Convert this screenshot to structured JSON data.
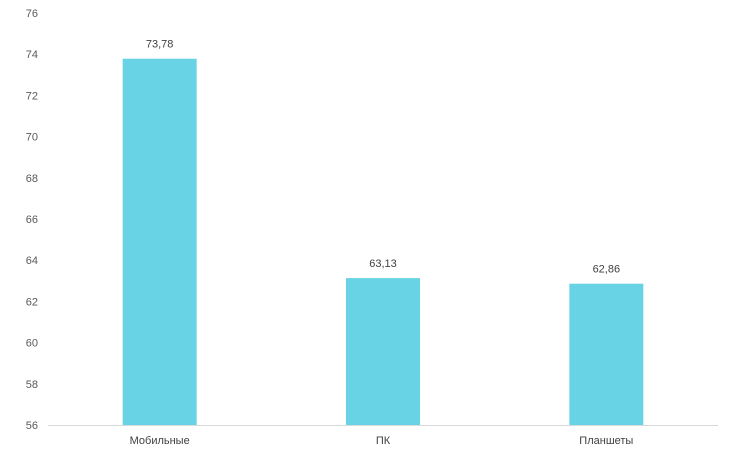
{
  "chart_data": {
    "type": "bar",
    "categories": [
      "Мобильные",
      "ПК",
      "Планшеты"
    ],
    "values": [
      73.78,
      63.13,
      62.86
    ],
    "data_labels": [
      "73,78",
      "63,13",
      "62,86"
    ],
    "ylim": [
      56,
      76
    ],
    "yticks": [
      "56",
      "58",
      "60",
      "62",
      "64",
      "66",
      "68",
      "70",
      "72",
      "74",
      "76"
    ],
    "bar_color": "#67d3e4",
    "axis_color": "#d9d9d9",
    "grid": false,
    "legend": "none"
  }
}
